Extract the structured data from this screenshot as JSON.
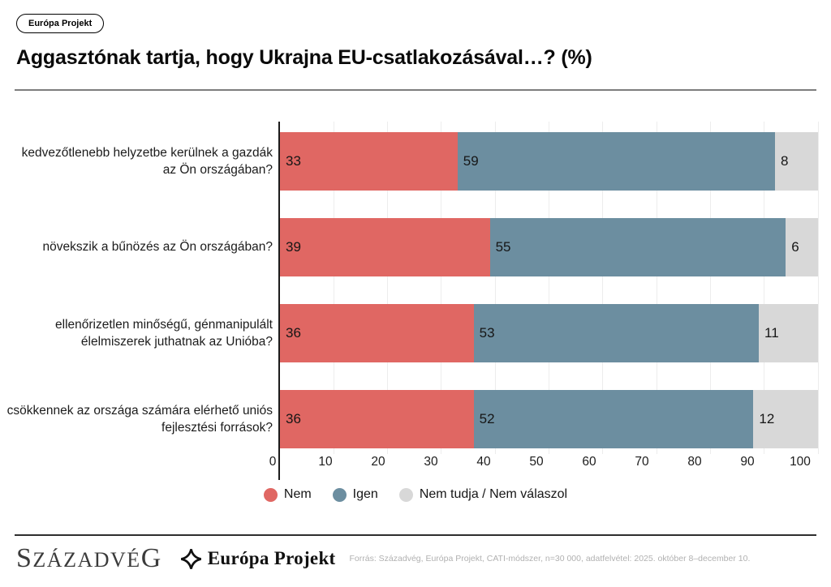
{
  "badge": {
    "label": "Európa Projekt"
  },
  "header": {
    "title": "Aggasztónak tartja, hogy Ukrajna EU-csatlakozásával…? (%)"
  },
  "chart_data": {
    "type": "bar",
    "orientation": "horizontal",
    "stacked": true,
    "unit": "%",
    "categories": [
      "kedvezőtlenebb helyzetbe kerülnek a gazdák az Ön országában?",
      "növekszik a bűnözés az Ön országában?",
      "ellenőrizetlen minőségű, génmanipulált élelmiszerek juthatnak az Unióba?",
      "csökkennek az országa számára elérhető uniós fejlesztési források?"
    ],
    "series": [
      {
        "name": "Nem",
        "color": "#e06763",
        "values": [
          33,
          39,
          36,
          36
        ]
      },
      {
        "name": "Igen",
        "color": "#6c8ea0",
        "values": [
          59,
          55,
          53,
          52
        ]
      },
      {
        "name": "Nem tudja / Nem válaszol",
        "color": "#d8d8d8",
        "values": [
          8,
          6,
          11,
          12
        ]
      }
    ],
    "xlim": [
      0,
      100
    ],
    "xticks": [
      0,
      10,
      20,
      30,
      40,
      50,
      60,
      70,
      80,
      90,
      100
    ],
    "grid": true,
    "legend_position": "bottom",
    "value_label_color": "#161616"
  },
  "footer": {
    "brand": "Századvég",
    "partner": "Európa Projekt",
    "source": "Forrás: Századvég, Európa Projekt, CATI-módszer, n=30 000, adatfelvétel: 2025. október 8–december 10."
  }
}
